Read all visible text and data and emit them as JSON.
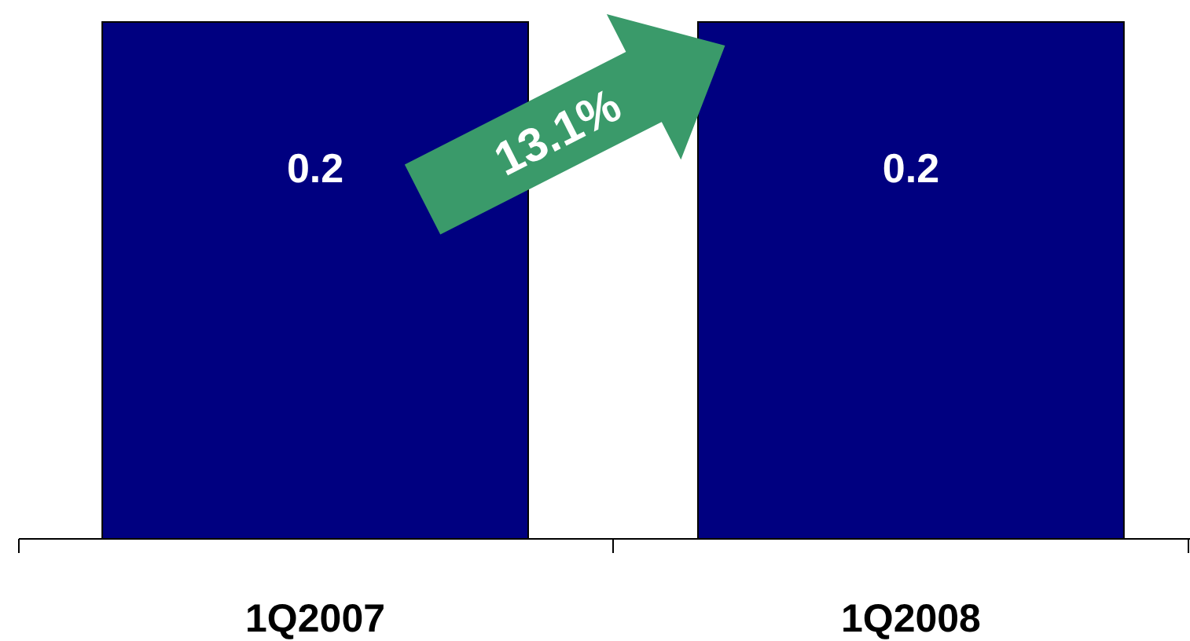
{
  "chart_data": {
    "type": "bar",
    "categories": [
      "1Q2007",
      "1Q2008"
    ],
    "values": [
      0.2,
      0.2
    ],
    "color": "#000080",
    "data_labels": true,
    "annotations": [
      "13.1%"
    ]
  }
}
